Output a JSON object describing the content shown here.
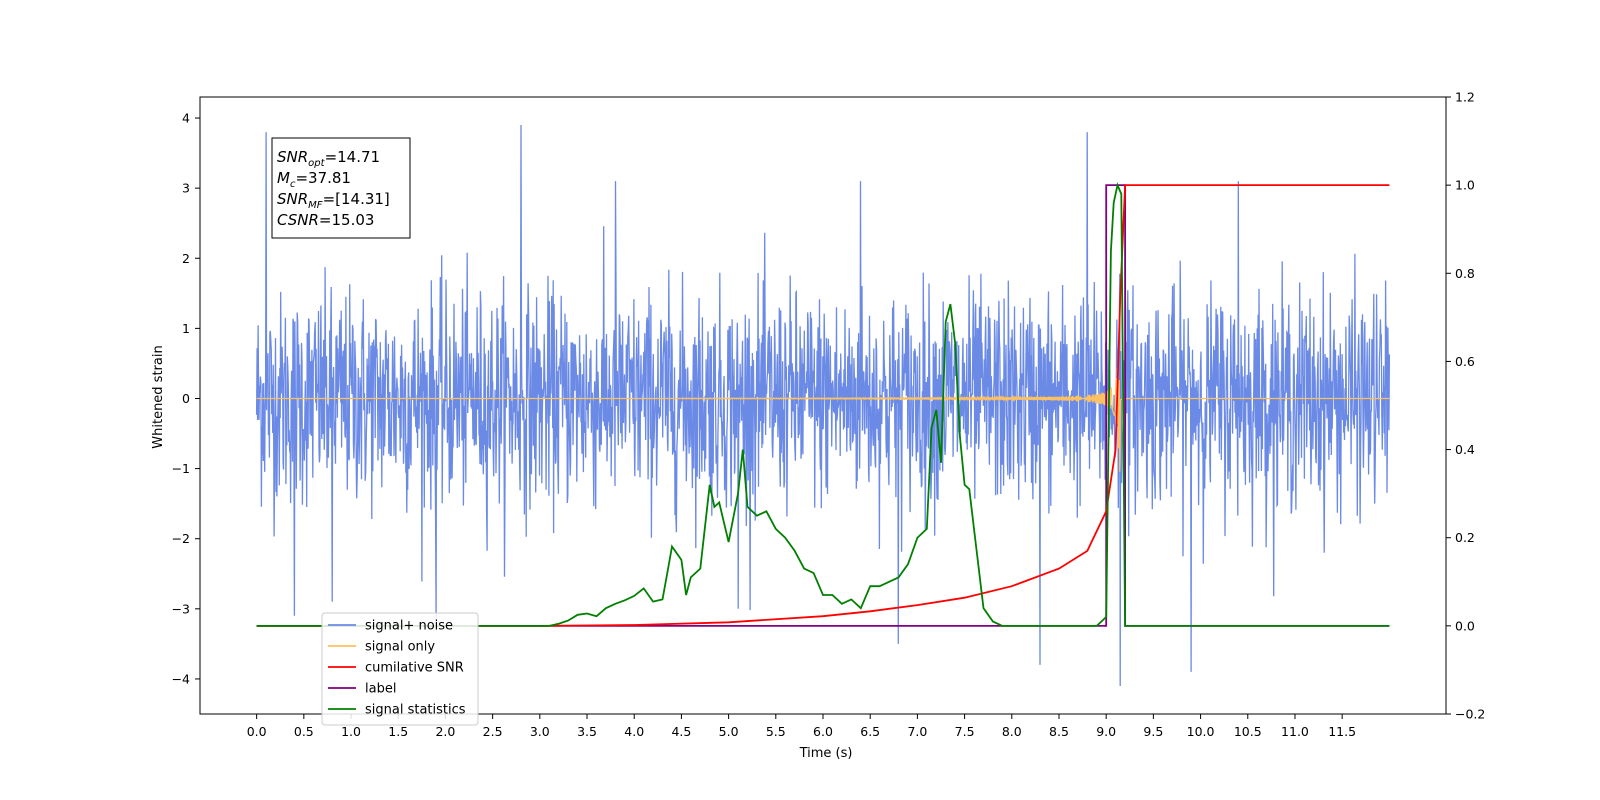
{
  "chart_data": {
    "type": "line",
    "xlabel": "Time (s)",
    "ylabel": "Whitened strain",
    "xlim": [
      -0.6,
      12.6
    ],
    "ylim": [
      -4.5,
      4.3
    ],
    "y2lim": [
      -0.2,
      1.2
    ],
    "x_ticks": [
      0.0,
      0.5,
      1.0,
      1.5,
      2.0,
      2.5,
      3.0,
      3.5,
      4.0,
      4.5,
      5.0,
      5.5,
      6.0,
      6.5,
      7.0,
      7.5,
      8.0,
      8.5,
      9.0,
      9.5,
      10.0,
      10.5,
      11.0,
      11.5
    ],
    "x_tick_labels": [
      "0.0",
      "0.5",
      "1.0",
      "1.5",
      "2.0",
      "2.5",
      "3.0",
      "3.5",
      "4.0",
      "4.5",
      "5.0",
      "5.5",
      "6.0",
      "6.5",
      "7.0",
      "7.5",
      "8.0",
      "8.5",
      "9.0",
      "9.5",
      "10.0",
      "10.5",
      "11.0",
      "11.5"
    ],
    "y_ticks": [
      4,
      3,
      2,
      1,
      0,
      -1,
      -2,
      -3,
      -4
    ],
    "y_tick_labels": [
      "4",
      "3",
      "2",
      "1",
      "0",
      "−1",
      "−2",
      "−3",
      "−4"
    ],
    "y2_ticks": [
      1.2,
      1.0,
      0.8,
      0.6,
      0.4,
      0.2,
      0.0,
      -0.2
    ],
    "y2_tick_labels": [
      "1.2",
      "1.0",
      "0.8",
      "0.6",
      "0.4",
      "0.2",
      "0.0",
      "−0.2"
    ],
    "grid": false,
    "legend_position": "lower-left",
    "annotation": [
      {
        "base": "SNR",
        "sub": "opt",
        "value": "=14.71"
      },
      {
        "base": "M",
        "sub": "c",
        "value": "=37.81"
      },
      {
        "base": "SNR",
        "sub": "MF",
        "value": "=[14.31]"
      },
      {
        "base": "CSNR",
        "sub": "",
        "value": "=15.03"
      }
    ],
    "series": [
      {
        "name": "signal+ noise",
        "color": "#6a8ae6",
        "axis": "left",
        "x_range": [
          0.0,
          12.0
        ],
        "amplitude_std": 0.75,
        "spikes": [
          [
            0.1,
            3.8
          ],
          [
            0.4,
            -3.1
          ],
          [
            0.8,
            -2.9
          ],
          [
            1.9,
            -3.2
          ],
          [
            2.8,
            3.9
          ],
          [
            3.8,
            3.1
          ],
          [
            5.1,
            -3.0
          ],
          [
            6.4,
            3.1
          ],
          [
            6.8,
            -3.5
          ],
          [
            8.3,
            -3.8
          ],
          [
            8.8,
            3.8
          ],
          [
            9.15,
            -4.1
          ],
          [
            9.9,
            -3.9
          ],
          [
            10.4,
            3.1
          ]
        ]
      },
      {
        "name": "signal only",
        "color": "#ffc060",
        "axis": "left",
        "chirp_start": 4.5,
        "chirp_merger": 9.15,
        "chirp_end": 9.25,
        "peak_amplitude": 1.05
      },
      {
        "name": "cumilative SNR",
        "color": "#ff0000",
        "axis": "right",
        "x": [
          0.0,
          3.0,
          4.0,
          5.0,
          6.0,
          6.5,
          7.0,
          7.5,
          8.0,
          8.5,
          8.8,
          9.0,
          9.1,
          9.15,
          9.2,
          12.0
        ],
        "y": [
          0.0,
          0.0,
          0.002,
          0.008,
          0.022,
          0.033,
          0.047,
          0.064,
          0.09,
          0.13,
          0.17,
          0.26,
          0.4,
          0.75,
          1.0,
          1.0
        ]
      },
      {
        "name": "label",
        "color": "#800080",
        "axis": "right",
        "x": [
          0.0,
          9.0,
          9.0,
          9.2,
          9.2,
          12.0
        ],
        "y": [
          0.0,
          0.0,
          1.0,
          1.0,
          0.0,
          0.0
        ]
      },
      {
        "name": "signal statistics",
        "color": "#008000",
        "axis": "right",
        "x": [
          0.0,
          3.1,
          3.2,
          3.3,
          3.4,
          3.5,
          3.6,
          3.7,
          3.8,
          3.9,
          4.0,
          4.1,
          4.2,
          4.3,
          4.35,
          4.4,
          4.5,
          4.55,
          4.6,
          4.7,
          4.8,
          4.85,
          4.9,
          5.0,
          5.1,
          5.15,
          5.2,
          5.3,
          5.4,
          5.5,
          5.6,
          5.7,
          5.8,
          5.9,
          6.0,
          6.1,
          6.2,
          6.3,
          6.4,
          6.5,
          6.6,
          6.7,
          6.8,
          6.9,
          7.0,
          7.1,
          7.15,
          7.2,
          7.25,
          7.3,
          7.35,
          7.4,
          7.45,
          7.5,
          7.55,
          7.6,
          7.7,
          7.8,
          7.9,
          8.0,
          8.5,
          8.9,
          9.0,
          9.05,
          9.08,
          9.12,
          9.16,
          9.2,
          9.25,
          12.0
        ],
        "y": [
          0.0,
          0.0,
          0.005,
          0.012,
          0.025,
          0.028,
          0.022,
          0.04,
          0.05,
          0.058,
          0.068,
          0.085,
          0.055,
          0.06,
          0.12,
          0.18,
          0.15,
          0.07,
          0.11,
          0.13,
          0.32,
          0.27,
          0.28,
          0.19,
          0.3,
          0.4,
          0.27,
          0.25,
          0.26,
          0.22,
          0.2,
          0.17,
          0.13,
          0.12,
          0.07,
          0.07,
          0.05,
          0.06,
          0.04,
          0.09,
          0.09,
          0.1,
          0.11,
          0.14,
          0.2,
          0.22,
          0.45,
          0.49,
          0.37,
          0.69,
          0.73,
          0.64,
          0.43,
          0.32,
          0.31,
          0.22,
          0.04,
          0.01,
          0.0,
          0.0,
          0.0,
          0.0,
          0.02,
          0.85,
          0.96,
          1.0,
          0.98,
          0.0,
          0.0,
          0.0
        ]
      }
    ]
  }
}
